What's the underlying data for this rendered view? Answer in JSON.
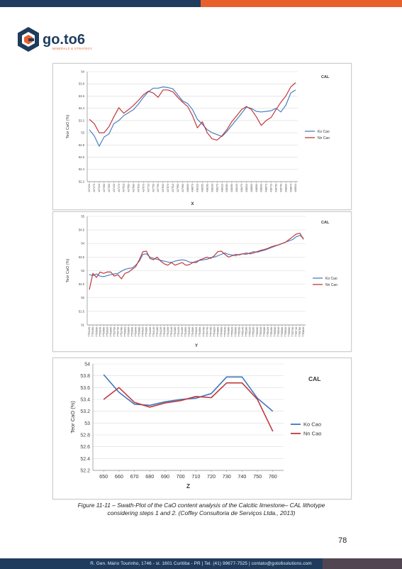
{
  "logo": {
    "text_main": "go.to6",
    "text_sub": "MINERALS & STRATEGY"
  },
  "charts": [
    {
      "type": "line",
      "x_title": "X",
      "y_title": "Teor CaO (%)",
      "corner_label": "CAL",
      "ylim": [
        52.2,
        54
      ],
      "yticks": [
        52.2,
        52.4,
        52.6,
        52.8,
        53,
        53.2,
        53.4,
        53.6,
        53.8,
        54
      ],
      "categories": [
        "437233",
        "437273",
        "437313",
        "437353",
        "437393",
        "437433",
        "437473",
        "437513",
        "437553",
        "437593",
        "437633",
        "437673",
        "437713",
        "437753",
        "437793",
        "437833",
        "437873",
        "437913",
        "437953",
        "437993",
        "438033",
        "438073",
        "438113",
        "438153",
        "438193",
        "438233",
        "438273",
        "438313",
        "438353",
        "438393",
        "438433",
        "438473",
        "438513",
        "438553",
        "438593",
        "438633",
        "438673",
        "438713",
        "438753",
        "438793",
        "438833",
        "438873",
        "438913"
      ],
      "series": [
        {
          "name": "Ko Cao",
          "color": "#4a7fc1",
          "values": [
            53.05,
            52.95,
            52.78,
            52.93,
            52.98,
            53.15,
            53.2,
            53.28,
            53.33,
            53.38,
            53.47,
            53.58,
            53.67,
            53.73,
            53.73,
            53.75,
            53.74,
            53.72,
            53.62,
            53.52,
            53.48,
            53.38,
            53.22,
            53.14,
            53.05,
            53.0,
            52.97,
            52.94,
            53.02,
            53.12,
            53.22,
            53.32,
            53.42,
            53.4,
            53.35,
            53.34,
            53.35,
            53.36,
            53.4,
            53.34,
            53.45,
            53.65,
            53.7
          ]
        },
        {
          "name": "Nn Cao",
          "color": "#c0393d",
          "values": [
            53.22,
            53.15,
            53.0,
            53.0,
            53.1,
            53.26,
            53.41,
            53.32,
            53.38,
            53.45,
            53.53,
            53.62,
            53.68,
            53.65,
            53.58,
            53.7,
            53.7,
            53.67,
            53.58,
            53.5,
            53.43,
            53.28,
            53.08,
            53.18,
            53.0,
            52.9,
            52.88,
            52.95,
            53.05,
            53.18,
            53.28,
            53.38,
            53.43,
            53.38,
            53.26,
            53.12,
            53.2,
            53.25,
            53.38,
            53.5,
            53.6,
            53.75,
            53.82
          ]
        }
      ]
    },
    {
      "type": "line",
      "x_title": "Y",
      "y_title": "Teor CaO (%)",
      "corner_label": "CAL",
      "ylim": [
        51,
        55
      ],
      "yticks": [
        51,
        51.5,
        52,
        52.5,
        53,
        53.5,
        54,
        54.5,
        55
      ],
      "categories": [
        "7753426",
        "7753466",
        "7753506",
        "7753546",
        "7753586",
        "7753626",
        "7753666",
        "7753706",
        "7753746",
        "7753786",
        "7753826",
        "7753866",
        "7753906",
        "7753946",
        "7753986",
        "7754026",
        "7754066",
        "7754106",
        "7754146",
        "7754186",
        "7754226",
        "7754266",
        "7754306",
        "7754346",
        "7754386",
        "7754426",
        "7754466",
        "7754506",
        "7754546",
        "7754586",
        "7754626",
        "7754666",
        "7754706",
        "7754746",
        "7754786",
        "7754826",
        "7754866",
        "7754906",
        "7754946",
        "7754986",
        "7755026",
        "7755066",
        "7755106",
        "7755146",
        "7755186",
        "7755226",
        "7755266",
        "7755306",
        "7755346",
        "7755386",
        "7755426",
        "7755466",
        "7755506",
        "7755546",
        "7755586",
        "7755626",
        "7755666",
        "7755706",
        "7755746",
        "7755786",
        "7755826"
      ],
      "series": [
        {
          "name": "Ko Cao",
          "color": "#4a7fc1",
          "values": [
            52.85,
            52.82,
            52.88,
            52.8,
            52.78,
            52.82,
            52.85,
            52.88,
            52.9,
            52.98,
            53.05,
            53.08,
            53.1,
            53.2,
            53.35,
            53.6,
            53.62,
            53.5,
            53.45,
            53.42,
            53.38,
            53.35,
            53.32,
            53.3,
            53.35,
            53.38,
            53.4,
            53.38,
            53.32,
            53.3,
            53.35,
            53.38,
            53.4,
            53.42,
            53.48,
            53.5,
            53.55,
            53.6,
            53.65,
            53.6,
            53.58,
            53.55,
            53.6,
            53.62,
            53.6,
            53.65,
            53.7,
            53.68,
            53.72,
            53.75,
            53.8,
            53.85,
            53.9,
            53.95,
            54.0,
            54.05,
            54.1,
            54.15,
            54.25,
            54.3,
            54.2
          ]
        },
        {
          "name": "Nn Cao",
          "color": "#c0393d",
          "values": [
            52.3,
            52.9,
            52.75,
            52.95,
            52.9,
            52.95,
            52.95,
            52.8,
            52.85,
            52.7,
            52.9,
            52.95,
            53.05,
            53.15,
            53.4,
            53.7,
            53.72,
            53.45,
            53.4,
            53.5,
            53.35,
            53.25,
            53.2,
            53.3,
            53.2,
            53.25,
            53.3,
            53.2,
            53.22,
            53.3,
            53.3,
            53.4,
            53.45,
            53.5,
            53.45,
            53.55,
            53.7,
            53.72,
            53.6,
            53.5,
            53.55,
            53.6,
            53.58,
            53.62,
            53.65,
            53.62,
            53.65,
            53.7,
            53.75,
            53.78,
            53.82,
            53.88,
            53.92,
            53.95,
            54.0,
            54.05,
            54.15,
            54.25,
            54.35,
            54.38,
            54.15
          ]
        }
      ]
    },
    {
      "type": "line",
      "x_title": "Z",
      "y_title": "Teor CaO (%)",
      "corner_label": "CAL",
      "ylim": [
        52.2,
        54
      ],
      "yticks": [
        52.2,
        52.4,
        52.6,
        52.8,
        53,
        53.2,
        53.4,
        53.6,
        53.8,
        54
      ],
      "categories": [
        "650",
        "660",
        "670",
        "680",
        "690",
        "700",
        "710",
        "720",
        "730",
        "740",
        "750",
        "760"
      ],
      "series": [
        {
          "name": "Ko Cao",
          "color": "#3d77bd",
          "values": [
            53.82,
            53.52,
            53.32,
            53.3,
            53.36,
            53.4,
            53.42,
            53.5,
            53.78,
            53.78,
            53.42,
            53.2
          ]
        },
        {
          "name": "Nn Cao",
          "color": "#c0393d",
          "values": [
            53.4,
            53.6,
            53.35,
            53.27,
            53.34,
            53.38,
            53.45,
            53.43,
            53.68,
            53.68,
            53.4,
            52.86
          ]
        }
      ]
    }
  ],
  "caption": {
    "line1": "Figure 11-11 – Swath-Plot of the CaO content analysis of the Calcitic limestone– CAL lithotype",
    "line2": "considering steps 1 and 2. (Coffey Consultoria de Serviços Ltda., 2013)"
  },
  "page_number": "78",
  "footer": {
    "text": "R. Gen. Mário Tourinho, 1746 - sl. 1601  Curitiba - PR | Tel. (41) 99677-7525 | contato@goto6solutions.com"
  },
  "colors": {
    "navy": "#1f3c5e",
    "orange": "#e8612c"
  }
}
